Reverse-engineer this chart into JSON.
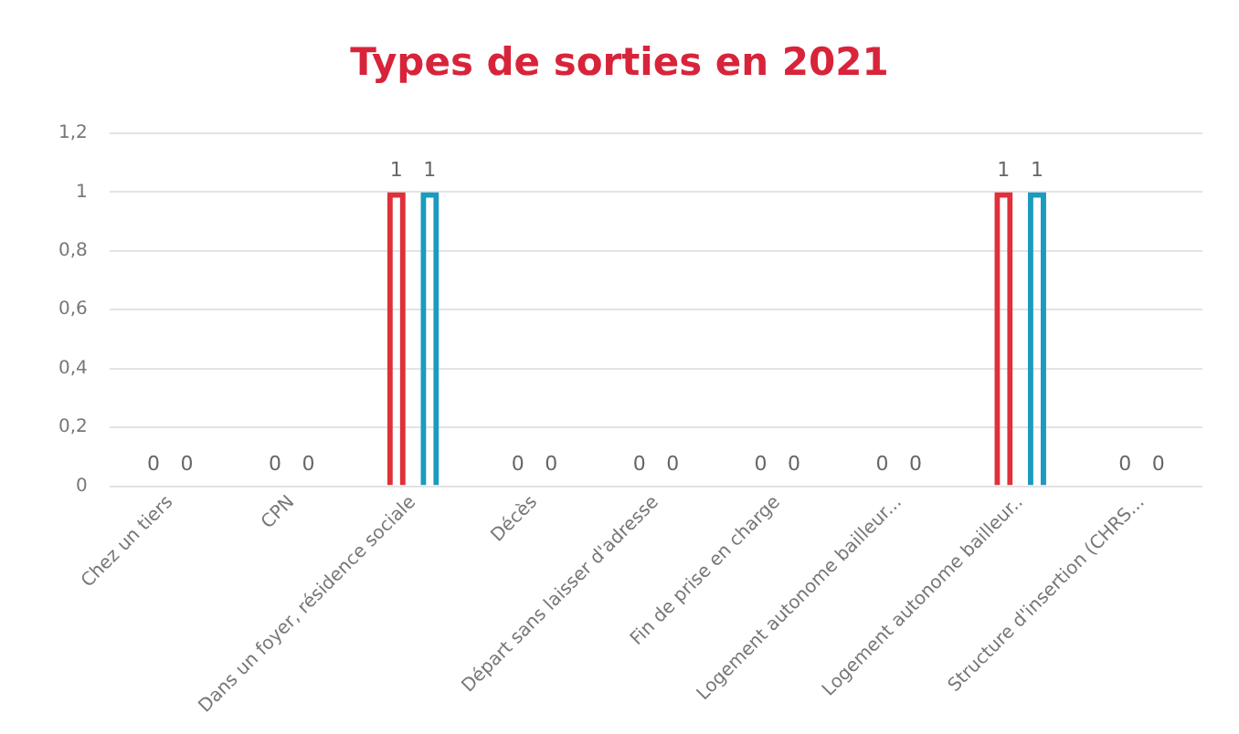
{
  "chart_data": {
    "type": "bar",
    "title": "Types de sorties en 2021",
    "categories": [
      "Chez un tiers",
      "CPN",
      "Dans un foyer, résidence sociale",
      "Décès",
      "Départ sans laisser d'adresse",
      "Fin de prise en charge",
      "Logement autonome bailleur...",
      "Logement autonome bailleur..",
      "Structure d'insertion (CHRS..."
    ],
    "series": [
      {
        "color": "#e0303a",
        "values": [
          0,
          0,
          1,
          0,
          0,
          0,
          0,
          1,
          0
        ]
      },
      {
        "color": "#1a9bbf",
        "values": [
          0,
          0,
          1,
          0,
          0,
          0,
          0,
          1,
          0
        ]
      }
    ],
    "ylim": [
      0,
      1.2
    ],
    "yticks": [
      0,
      {
        "value": 0.2,
        "label": "0,2"
      },
      {
        "value": 0.4,
        "label": "0,4"
      },
      {
        "value": 0.6,
        "label": "0,6"
      },
      {
        "value": 0.8,
        "label": "0,8"
      },
      1,
      {
        "value": 1.2,
        "label": "1,2"
      }
    ],
    "grid": "y",
    "data_labels": true,
    "legend": false
  }
}
